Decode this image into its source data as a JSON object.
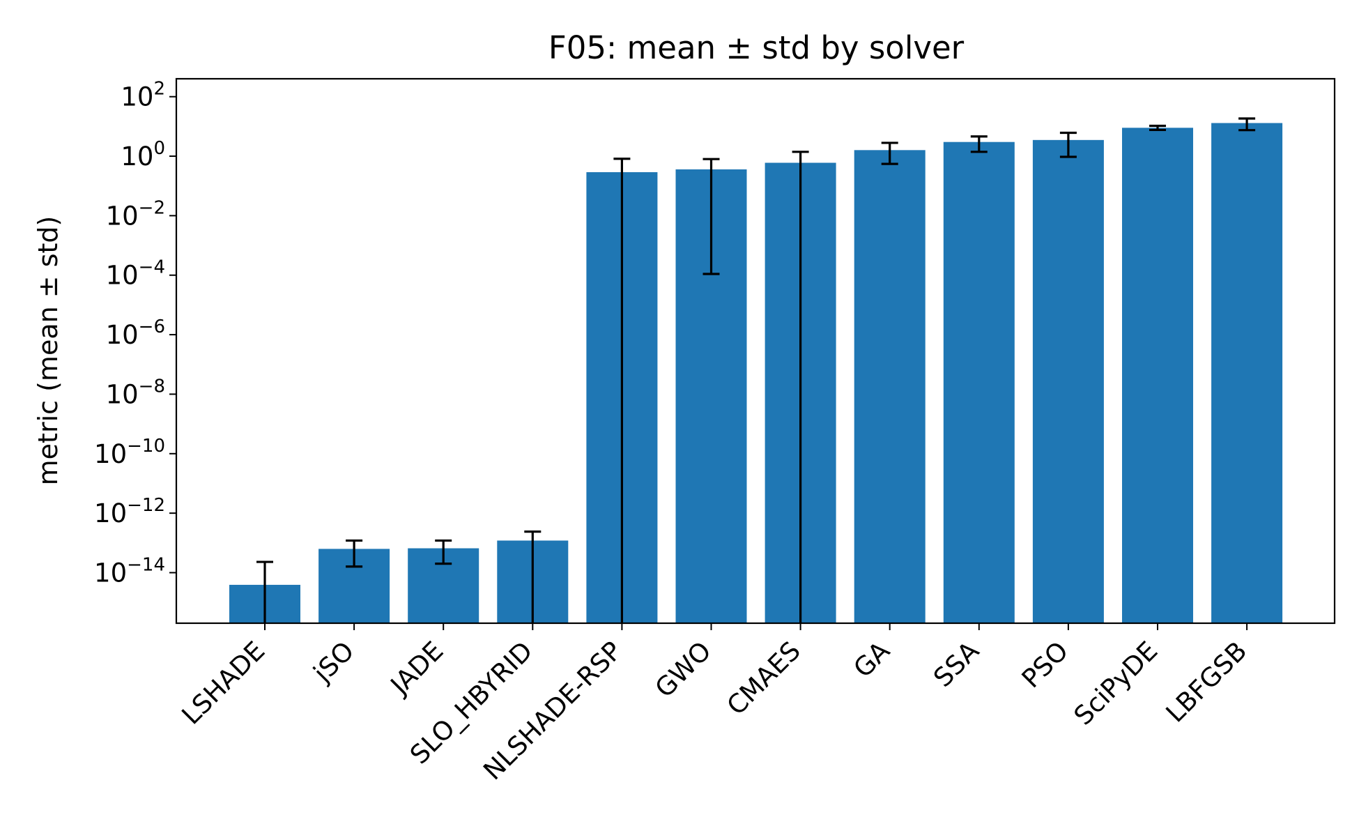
{
  "chart_data": {
    "type": "bar",
    "title": "F05: mean ± std by solver",
    "xlabel": "",
    "ylabel": "metric (mean ± std)",
    "yscale": "log",
    "ylim": [
      2e-16,
      400
    ],
    "yticks": [
      {
        "base": "10",
        "exp": "2",
        "value": 100
      },
      {
        "base": "10",
        "exp": "0",
        "value": 1
      },
      {
        "base": "10",
        "exp": "−2",
        "value": 0.01
      },
      {
        "base": "10",
        "exp": "−4",
        "value": 0.0001
      },
      {
        "base": "10",
        "exp": "−6",
        "value": 1e-06
      },
      {
        "base": "10",
        "exp": "−8",
        "value": 1e-08
      },
      {
        "base": "10",
        "exp": "−10",
        "value": 1e-10
      },
      {
        "base": "10",
        "exp": "−12",
        "value": 1e-12
      },
      {
        "base": "10",
        "exp": "−14",
        "value": 1e-14
      }
    ],
    "categories": [
      "LSHADE",
      "jSO",
      "JADE",
      "SLO_HBYRID",
      "NLSHADE-RSP",
      "GWO",
      "CMAES",
      "GA",
      "SSA",
      "PSO",
      "SciPyDE",
      "LBFGSB"
    ],
    "values": [
      3.9e-15,
      6.3e-14,
      6.6e-14,
      1.2e-13,
      0.29,
      0.36,
      0.6,
      1.6,
      3.0,
      3.5,
      9.0,
      13.0
    ],
    "error_low": [
      1e-18,
      1.6e-14,
      2e-14,
      1e-18,
      1e-18,
      0.00011,
      1e-18,
      0.55,
      1.4,
      0.95,
      7.6,
      7.5
    ],
    "error_high": [
      2.3e-14,
      1.2e-13,
      1.2e-13,
      2.4e-13,
      0.82,
      0.8,
      1.4,
      2.8,
      4.6,
      6.1,
      10.5,
      18.5
    ],
    "bar_color": "#1f77b4",
    "error_color": "#000000",
    "grid": false,
    "legend": "none"
  }
}
